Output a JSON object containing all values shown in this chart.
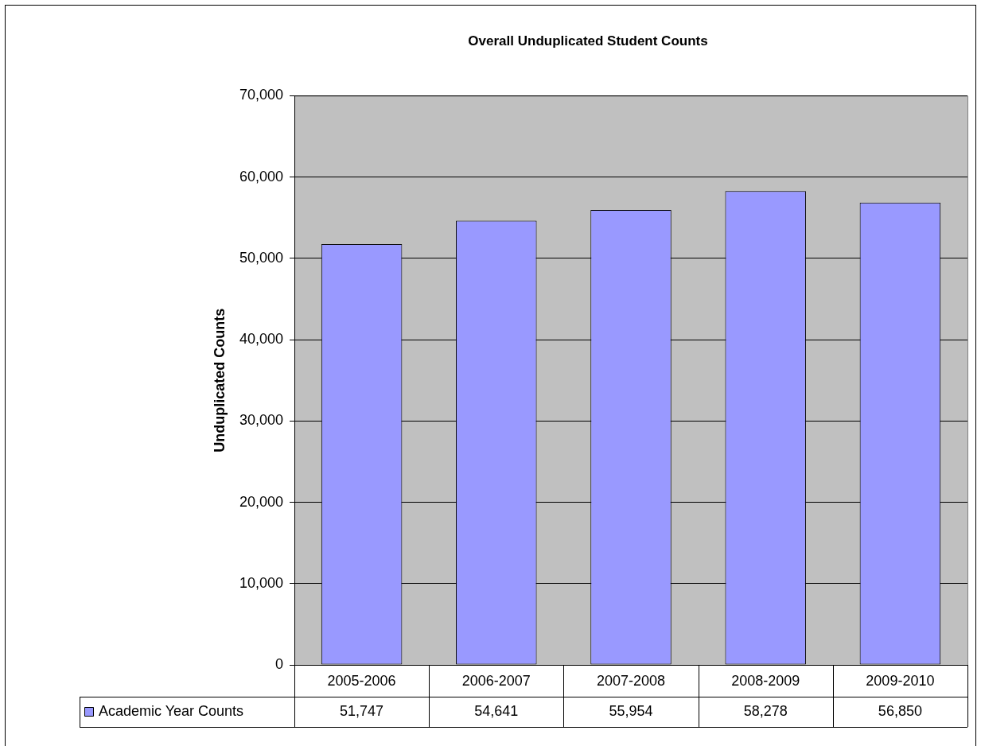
{
  "chart_data": {
    "type": "bar",
    "title": "Overall Unduplicated Student Counts",
    "ylabel": "Unduplicated Counts",
    "categories": [
      "2005-2006",
      "2006-2007",
      "2007-2008",
      "2008-2009",
      "2009-2010"
    ],
    "series": [
      {
        "name": "Academic Year Counts",
        "color": "#9999ff",
        "values": [
          51747,
          54641,
          55954,
          58278,
          56850
        ],
        "value_labels": [
          "51,747",
          "54,641",
          "55,954",
          "58,278",
          "56,850"
        ]
      }
    ],
    "ylim": [
      0,
      70000
    ],
    "yticks": [
      {
        "value": 0,
        "label": "0"
      },
      {
        "value": 10000,
        "label": "10,000"
      },
      {
        "value": 20000,
        "label": "20,000"
      },
      {
        "value": 30000,
        "label": "30,000"
      },
      {
        "value": 40000,
        "label": "40,000"
      },
      {
        "value": 50000,
        "label": "50,000"
      },
      {
        "value": 60000,
        "label": "60,000"
      },
      {
        "value": 70000,
        "label": "70,000"
      }
    ],
    "grid": "y",
    "legend": "bottom"
  }
}
